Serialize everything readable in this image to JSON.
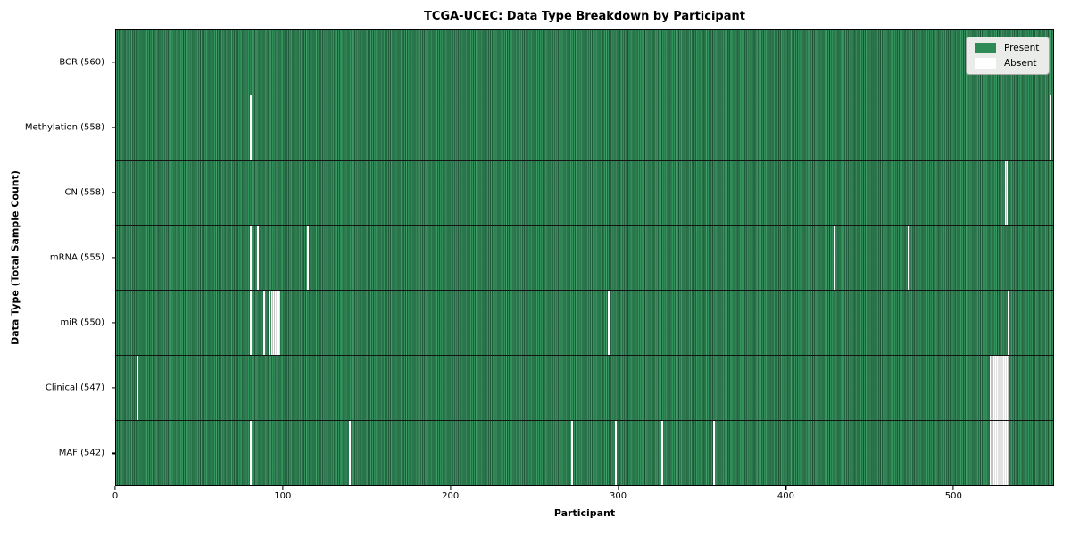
{
  "title": "TCGA-UCEC: Data Type Breakdown by Participant",
  "xlabel": "Participant",
  "ylabel": "Data Type (Total Sample Count)",
  "legend": {
    "present_label": "Present",
    "absent_label": "Absent"
  },
  "colors": {
    "present": "#2e8b57",
    "present_edge": "#1d5638",
    "absent": "#ffffff",
    "cluster_separator": "#c3c3c3",
    "legend_bg": "#e9ece9"
  },
  "chart_data": {
    "type": "heatmap",
    "title": "TCGA-UCEC: Data Type Breakdown by Participant",
    "xlabel": "Participant",
    "ylabel": "Data Type (Total Sample Count)",
    "legend_entries": [
      "Present",
      "Absent"
    ],
    "legend_position": "upper right",
    "x_range": [
      0,
      560
    ],
    "x_ticks": [
      0,
      100,
      200,
      300,
      400,
      500
    ],
    "n_participants": 560,
    "grid": false,
    "rows": [
      {
        "label": "BCR (560)",
        "data_type": "BCR",
        "present_count": 560,
        "absent_participants": []
      },
      {
        "label": "Methylation (558)",
        "data_type": "Methylation",
        "present_count": 558,
        "absent_participants": [
          80,
          558
        ]
      },
      {
        "label": "CN (558)",
        "data_type": "CN",
        "present_count": 558,
        "absent_participants": [
          531,
          532
        ]
      },
      {
        "label": "mRNA (555)",
        "data_type": "mRNA",
        "present_count": 555,
        "absent_participants": [
          80,
          84,
          114,
          429,
          473
        ]
      },
      {
        "label": "miR (550)",
        "data_type": "miR",
        "present_count": 550,
        "absent_participants": [
          80,
          88,
          91,
          93,
          94,
          95,
          96,
          97,
          294,
          533
        ]
      },
      {
        "label": "Clinical (547)",
        "data_type": "Clinical",
        "present_count": 547,
        "absent_participants": [
          12,
          522,
          523,
          524,
          525,
          526,
          527,
          528,
          529,
          530,
          531,
          532,
          533
        ]
      },
      {
        "label": "MAF (542)",
        "data_type": "MAF",
        "present_count": 542,
        "absent_participants": [
          80,
          139,
          272,
          298,
          326,
          357,
          522,
          523,
          524,
          525,
          526,
          527,
          528,
          529,
          530,
          531,
          532,
          533
        ]
      }
    ]
  }
}
